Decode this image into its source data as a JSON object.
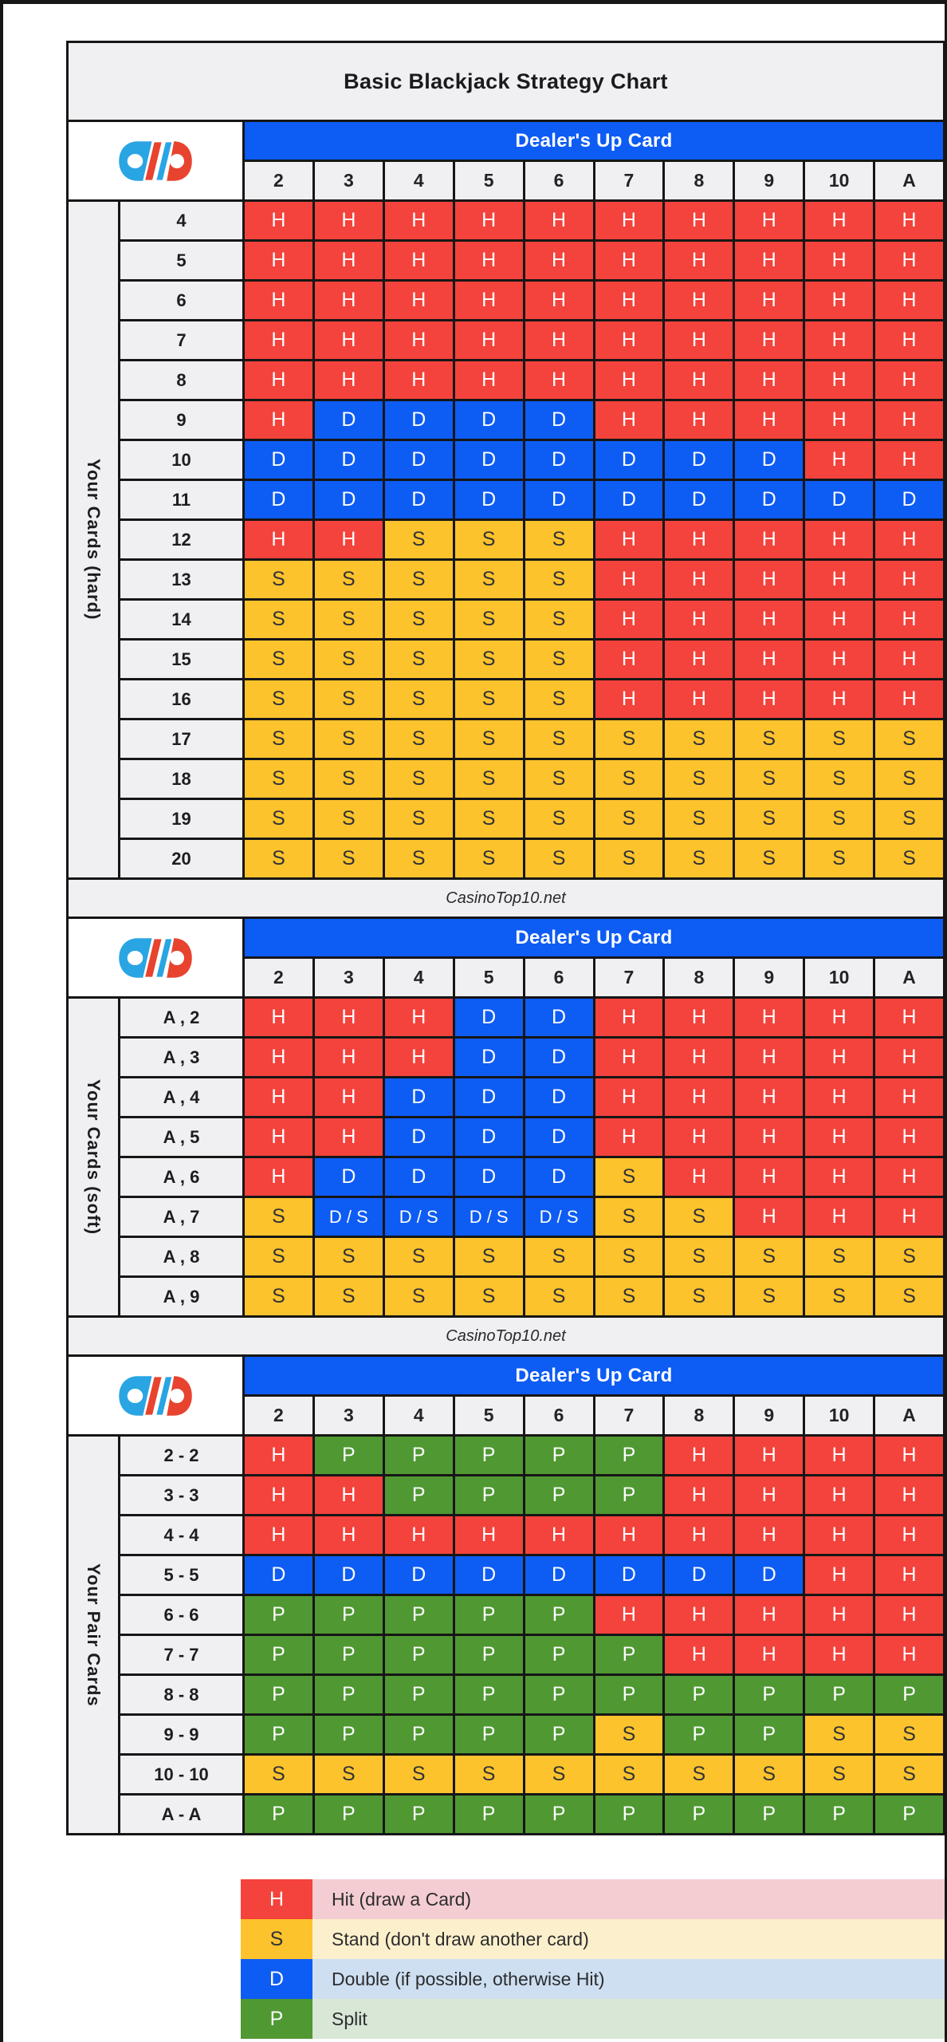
{
  "page": {
    "title": "Basic Blackjack Strategy Chart"
  },
  "watermark": "CasinoTop10.net",
  "colors": {
    "hit": "#f4423c",
    "stand": "#fdc32c",
    "double": "#0d5cf4",
    "split": "#4f9832",
    "hit_light": "#f3cdd2",
    "stand_light": "#fcf0cc",
    "double_light": "#cddff0",
    "split_light": "#d8e7d6",
    "header_blue": "#0d5cf4",
    "panel_gray": "#f0f0f2",
    "border_black": "#161616",
    "stand_text": "#323236",
    "logo_blue": "#29a5e3",
    "logo_red": "#e8432e"
  },
  "chart_data": [
    {
      "type": "table",
      "header_label": "Dealer's Up Card",
      "side_label": "Your Cards (hard)",
      "columns": [
        "2",
        "3",
        "4",
        "5",
        "6",
        "7",
        "8",
        "9",
        "10",
        "A"
      ],
      "rows": [
        {
          "label": "4",
          "values": [
            "H",
            "H",
            "H",
            "H",
            "H",
            "H",
            "H",
            "H",
            "H",
            "H"
          ]
        },
        {
          "label": "5",
          "values": [
            "H",
            "H",
            "H",
            "H",
            "H",
            "H",
            "H",
            "H",
            "H",
            "H"
          ]
        },
        {
          "label": "6",
          "values": [
            "H",
            "H",
            "H",
            "H",
            "H",
            "H",
            "H",
            "H",
            "H",
            "H"
          ]
        },
        {
          "label": "7",
          "values": [
            "H",
            "H",
            "H",
            "H",
            "H",
            "H",
            "H",
            "H",
            "H",
            "H"
          ]
        },
        {
          "label": "8",
          "values": [
            "H",
            "H",
            "H",
            "H",
            "H",
            "H",
            "H",
            "H",
            "H",
            "H"
          ]
        },
        {
          "label": "9",
          "values": [
            "H",
            "D",
            "D",
            "D",
            "D",
            "H",
            "H",
            "H",
            "H",
            "H"
          ]
        },
        {
          "label": "10",
          "values": [
            "D",
            "D",
            "D",
            "D",
            "D",
            "D",
            "D",
            "D",
            "H",
            "H"
          ]
        },
        {
          "label": "11",
          "values": [
            "D",
            "D",
            "D",
            "D",
            "D",
            "D",
            "D",
            "D",
            "D",
            "D"
          ]
        },
        {
          "label": "12",
          "values": [
            "H",
            "H",
            "S",
            "S",
            "S",
            "H",
            "H",
            "H",
            "H",
            "H"
          ]
        },
        {
          "label": "13",
          "values": [
            "S",
            "S",
            "S",
            "S",
            "S",
            "H",
            "H",
            "H",
            "H",
            "H"
          ]
        },
        {
          "label": "14",
          "values": [
            "S",
            "S",
            "S",
            "S",
            "S",
            "H",
            "H",
            "H",
            "H",
            "H"
          ]
        },
        {
          "label": "15",
          "values": [
            "S",
            "S",
            "S",
            "S",
            "S",
            "H",
            "H",
            "H",
            "H",
            "H"
          ]
        },
        {
          "label": "16",
          "values": [
            "S",
            "S",
            "S",
            "S",
            "S",
            "H",
            "H",
            "H",
            "H",
            "H"
          ]
        },
        {
          "label": "17",
          "values": [
            "S",
            "S",
            "S",
            "S",
            "S",
            "S",
            "S",
            "S",
            "S",
            "S"
          ]
        },
        {
          "label": "18",
          "values": [
            "S",
            "S",
            "S",
            "S",
            "S",
            "S",
            "S",
            "S",
            "S",
            "S"
          ]
        },
        {
          "label": "19",
          "values": [
            "S",
            "S",
            "S",
            "S",
            "S",
            "S",
            "S",
            "S",
            "S",
            "S"
          ]
        },
        {
          "label": "20",
          "values": [
            "S",
            "S",
            "S",
            "S",
            "S",
            "S",
            "S",
            "S",
            "S",
            "S"
          ]
        }
      ],
      "footer": "CasinoTop10.net"
    },
    {
      "type": "table",
      "header_label": "Dealer's Up Card",
      "side_label": "Your Cards (soft)",
      "columns": [
        "2",
        "3",
        "4",
        "5",
        "6",
        "7",
        "8",
        "9",
        "10",
        "A"
      ],
      "rows": [
        {
          "label": "A , 2",
          "values": [
            "H",
            "H",
            "H",
            "D",
            "D",
            "H",
            "H",
            "H",
            "H",
            "H"
          ]
        },
        {
          "label": "A , 3",
          "values": [
            "H",
            "H",
            "H",
            "D",
            "D",
            "H",
            "H",
            "H",
            "H",
            "H"
          ]
        },
        {
          "label": "A , 4",
          "values": [
            "H",
            "H",
            "D",
            "D",
            "D",
            "H",
            "H",
            "H",
            "H",
            "H"
          ]
        },
        {
          "label": "A , 5",
          "values": [
            "H",
            "H",
            "D",
            "D",
            "D",
            "H",
            "H",
            "H",
            "H",
            "H"
          ]
        },
        {
          "label": "A , 6",
          "values": [
            "H",
            "D",
            "D",
            "D",
            "D",
            "S",
            "H",
            "H",
            "H",
            "H"
          ]
        },
        {
          "label": "A , 7",
          "values": [
            "S",
            "D / S",
            "D / S",
            "D / S",
            "D / S",
            "S",
            "S",
            "H",
            "H",
            "H"
          ]
        },
        {
          "label": "A , 8",
          "values": [
            "S",
            "S",
            "S",
            "S",
            "S",
            "S",
            "S",
            "S",
            "S",
            "S"
          ]
        },
        {
          "label": "A , 9",
          "values": [
            "S",
            "S",
            "S",
            "S",
            "S",
            "S",
            "S",
            "S",
            "S",
            "S"
          ]
        }
      ],
      "footer": "CasinoTop10.net"
    },
    {
      "type": "table",
      "header_label": "Dealer's Up Card",
      "side_label": "Your Pair Cards",
      "columns": [
        "2",
        "3",
        "4",
        "5",
        "6",
        "7",
        "8",
        "9",
        "10",
        "A"
      ],
      "rows": [
        {
          "label": "2 - 2",
          "values": [
            "H",
            "P",
            "P",
            "P",
            "P",
            "P",
            "H",
            "H",
            "H",
            "H"
          ]
        },
        {
          "label": "3 - 3",
          "values": [
            "H",
            "H",
            "P",
            "P",
            "P",
            "P",
            "H",
            "H",
            "H",
            "H"
          ]
        },
        {
          "label": "4 - 4",
          "values": [
            "H",
            "H",
            "H",
            "H",
            "H",
            "H",
            "H",
            "H",
            "H",
            "H"
          ]
        },
        {
          "label": "5 - 5",
          "values": [
            "D",
            "D",
            "D",
            "D",
            "D",
            "D",
            "D",
            "D",
            "H",
            "H"
          ]
        },
        {
          "label": "6 - 6",
          "values": [
            "P",
            "P",
            "P",
            "P",
            "P",
            "H",
            "H",
            "H",
            "H",
            "H"
          ]
        },
        {
          "label": "7 - 7",
          "values": [
            "P",
            "P",
            "P",
            "P",
            "P",
            "P",
            "H",
            "H",
            "H",
            "H"
          ]
        },
        {
          "label": "8 - 8",
          "values": [
            "P",
            "P",
            "P",
            "P",
            "P",
            "P",
            "P",
            "P",
            "P",
            "P"
          ]
        },
        {
          "label": "9 - 9",
          "values": [
            "P",
            "P",
            "P",
            "P",
            "P",
            "S",
            "P",
            "P",
            "S",
            "S"
          ]
        },
        {
          "label": "10 - 10",
          "values": [
            "S",
            "S",
            "S",
            "S",
            "S",
            "S",
            "S",
            "S",
            "S",
            "S"
          ]
        },
        {
          "label": "A - A",
          "values": [
            "P",
            "P",
            "P",
            "P",
            "P",
            "P",
            "P",
            "P",
            "P",
            "P"
          ]
        }
      ],
      "footer": null
    }
  ],
  "legend": [
    {
      "letter": "H",
      "type": "hit",
      "text": "Hit (draw a Card)"
    },
    {
      "letter": "S",
      "type": "stand",
      "text": "Stand (don't draw another card)"
    },
    {
      "letter": "D",
      "type": "double",
      "text": "Double (if possible, otherwise Hit)"
    },
    {
      "letter": "P",
      "type": "split",
      "text": "Split"
    }
  ]
}
